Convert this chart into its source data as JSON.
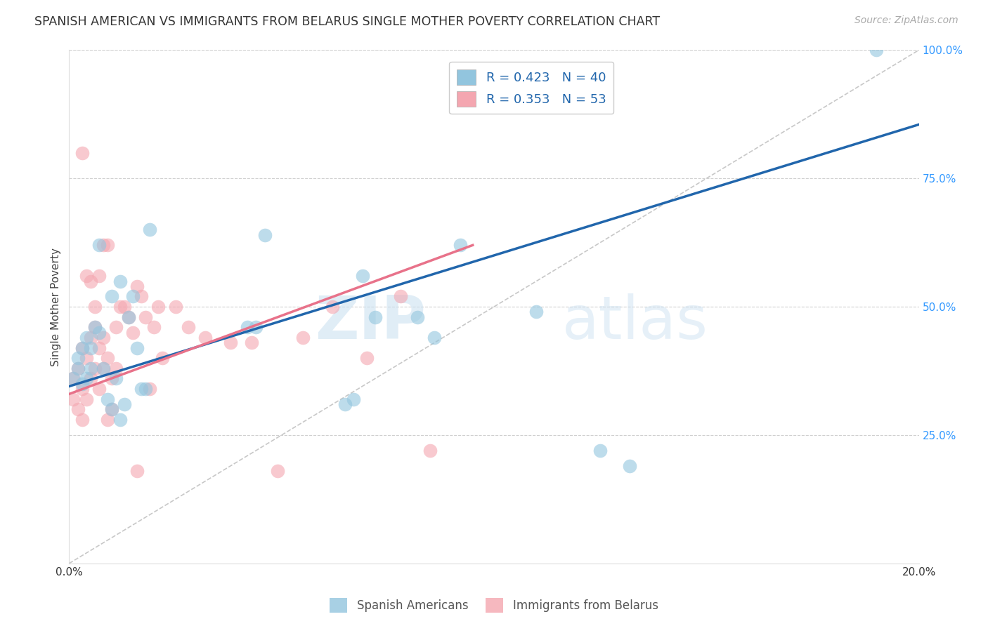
{
  "title": "SPANISH AMERICAN VS IMMIGRANTS FROM BELARUS SINGLE MOTHER POVERTY CORRELATION CHART",
  "source": "Source: ZipAtlas.com",
  "ylabel": "Single Mother Poverty",
  "xmin": 0.0,
  "xmax": 0.2,
  "ymin": 0.0,
  "ymax": 1.0,
  "blue_color": "#92c5de",
  "pink_color": "#f4a6b0",
  "blue_line_color": "#2166ac",
  "pink_line_color": "#e8728a",
  "diag_color": "#c8c8c8",
  "legend_blue_r": "R = 0.423",
  "legend_blue_n": "N = 40",
  "legend_pink_r": "R = 0.353",
  "legend_pink_n": "N = 53",
  "watermark_zip": "ZIP",
  "watermark_atlas": "atlas",
  "blue_line_x": [
    0.0,
    0.2
  ],
  "blue_line_y": [
    0.345,
    0.855
  ],
  "pink_line_x": [
    0.0,
    0.095
  ],
  "pink_line_y": [
    0.33,
    0.62
  ],
  "diag_line_x": [
    0.0,
    0.2
  ],
  "diag_line_y": [
    0.0,
    1.0
  ],
  "blue_scatter_x": [
    0.001,
    0.002,
    0.002,
    0.003,
    0.003,
    0.004,
    0.004,
    0.005,
    0.005,
    0.006,
    0.007,
    0.007,
    0.008,
    0.009,
    0.01,
    0.01,
    0.011,
    0.012,
    0.012,
    0.013,
    0.014,
    0.015,
    0.016,
    0.017,
    0.018,
    0.019,
    0.042,
    0.044,
    0.046,
    0.065,
    0.067,
    0.069,
    0.082,
    0.086,
    0.092,
    0.11,
    0.125,
    0.132,
    0.19,
    0.072
  ],
  "blue_scatter_y": [
    0.36,
    0.4,
    0.38,
    0.42,
    0.35,
    0.44,
    0.36,
    0.38,
    0.42,
    0.46,
    0.45,
    0.62,
    0.38,
    0.32,
    0.3,
    0.52,
    0.36,
    0.28,
    0.55,
    0.31,
    0.48,
    0.52,
    0.42,
    0.34,
    0.34,
    0.65,
    0.46,
    0.46,
    0.64,
    0.31,
    0.32,
    0.56,
    0.48,
    0.44,
    0.62,
    0.49,
    0.22,
    0.19,
    1.0,
    0.48
  ],
  "pink_scatter_x": [
    0.001,
    0.001,
    0.002,
    0.002,
    0.003,
    0.003,
    0.003,
    0.004,
    0.004,
    0.005,
    0.005,
    0.006,
    0.006,
    0.007,
    0.007,
    0.008,
    0.008,
    0.009,
    0.009,
    0.01,
    0.01,
    0.011,
    0.011,
    0.012,
    0.013,
    0.014,
    0.015,
    0.016,
    0.017,
    0.018,
    0.019,
    0.02,
    0.021,
    0.022,
    0.025,
    0.028,
    0.032,
    0.038,
    0.043,
    0.049,
    0.055,
    0.062,
    0.07,
    0.078,
    0.085,
    0.003,
    0.004,
    0.005,
    0.006,
    0.007,
    0.008,
    0.009,
    0.016
  ],
  "pink_scatter_y": [
    0.36,
    0.32,
    0.38,
    0.3,
    0.42,
    0.34,
    0.28,
    0.4,
    0.32,
    0.44,
    0.36,
    0.46,
    0.38,
    0.42,
    0.34,
    0.44,
    0.38,
    0.4,
    0.28,
    0.36,
    0.3,
    0.46,
    0.38,
    0.5,
    0.5,
    0.48,
    0.45,
    0.54,
    0.52,
    0.48,
    0.34,
    0.46,
    0.5,
    0.4,
    0.5,
    0.46,
    0.44,
    0.43,
    0.43,
    0.18,
    0.44,
    0.5,
    0.4,
    0.52,
    0.22,
    0.8,
    0.56,
    0.55,
    0.5,
    0.56,
    0.62,
    0.62,
    0.18
  ]
}
